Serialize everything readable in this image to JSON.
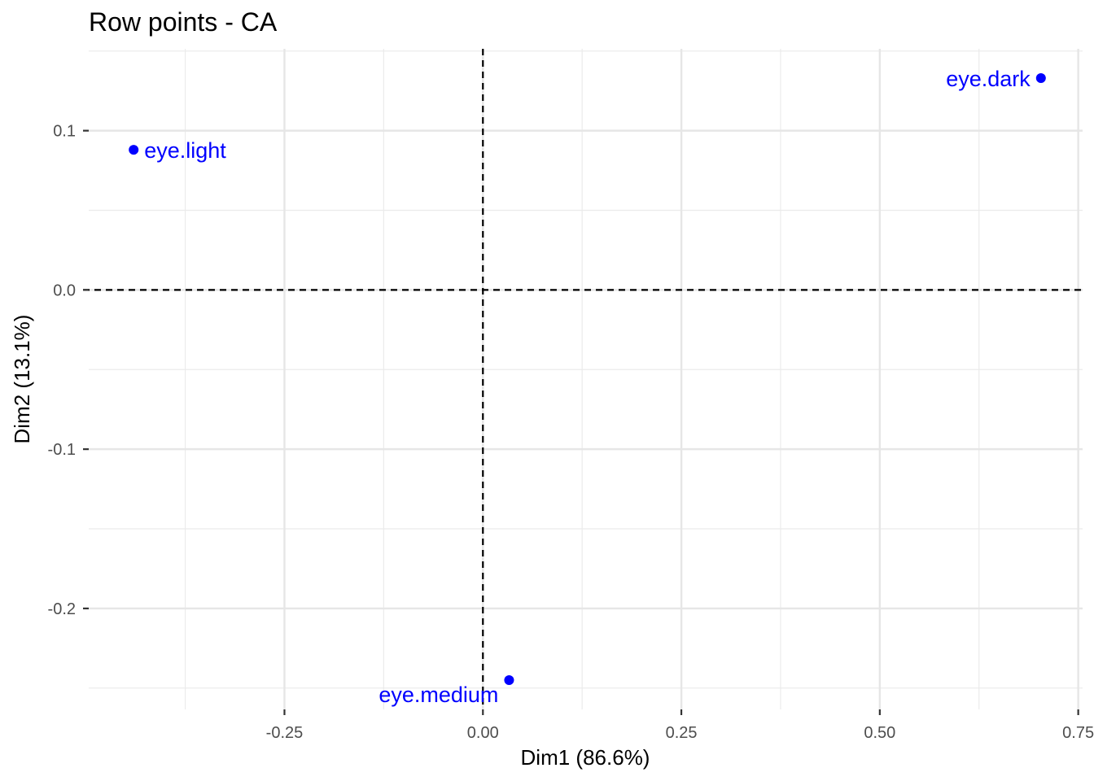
{
  "chart_data": {
    "type": "scatter",
    "title": "Row points - CA",
    "xlabel": "Dim1 (86.6%)",
    "ylabel": "Dim2 (13.1%)",
    "xlim": [
      -0.4966,
      0.7555
    ],
    "ylim": [
      -0.2634,
      0.1514
    ],
    "x_ticks": [
      -0.25,
      0.0,
      0.25,
      0.5,
      0.75
    ],
    "x_tick_labels": [
      "-0.25",
      "0.00",
      "0.25",
      "0.50",
      "0.75"
    ],
    "y_ticks": [
      -0.2,
      -0.1,
      0.0,
      0.1
    ],
    "y_tick_labels": [
      "-0.2",
      "-0.1",
      "0.0",
      "0.1"
    ],
    "x_minor": [
      -0.375,
      -0.125,
      0.125,
      0.375,
      0.625
    ],
    "y_minor": [
      -0.25,
      -0.15,
      -0.05,
      0.05,
      0.15
    ],
    "grid": true,
    "reference_lines": {
      "x": 0,
      "y": 0,
      "style": "dashed"
    },
    "point_color": "#0000ff",
    "points": [
      {
        "label": "eye.light",
        "x": -0.44,
        "y": 0.088,
        "label_side": "right"
      },
      {
        "label": "eye.dark",
        "x": 0.703,
        "y": 0.133,
        "label_side": "left"
      },
      {
        "label": "eye.medium",
        "x": 0.033,
        "y": -0.245,
        "label_side": "below-left"
      }
    ]
  }
}
